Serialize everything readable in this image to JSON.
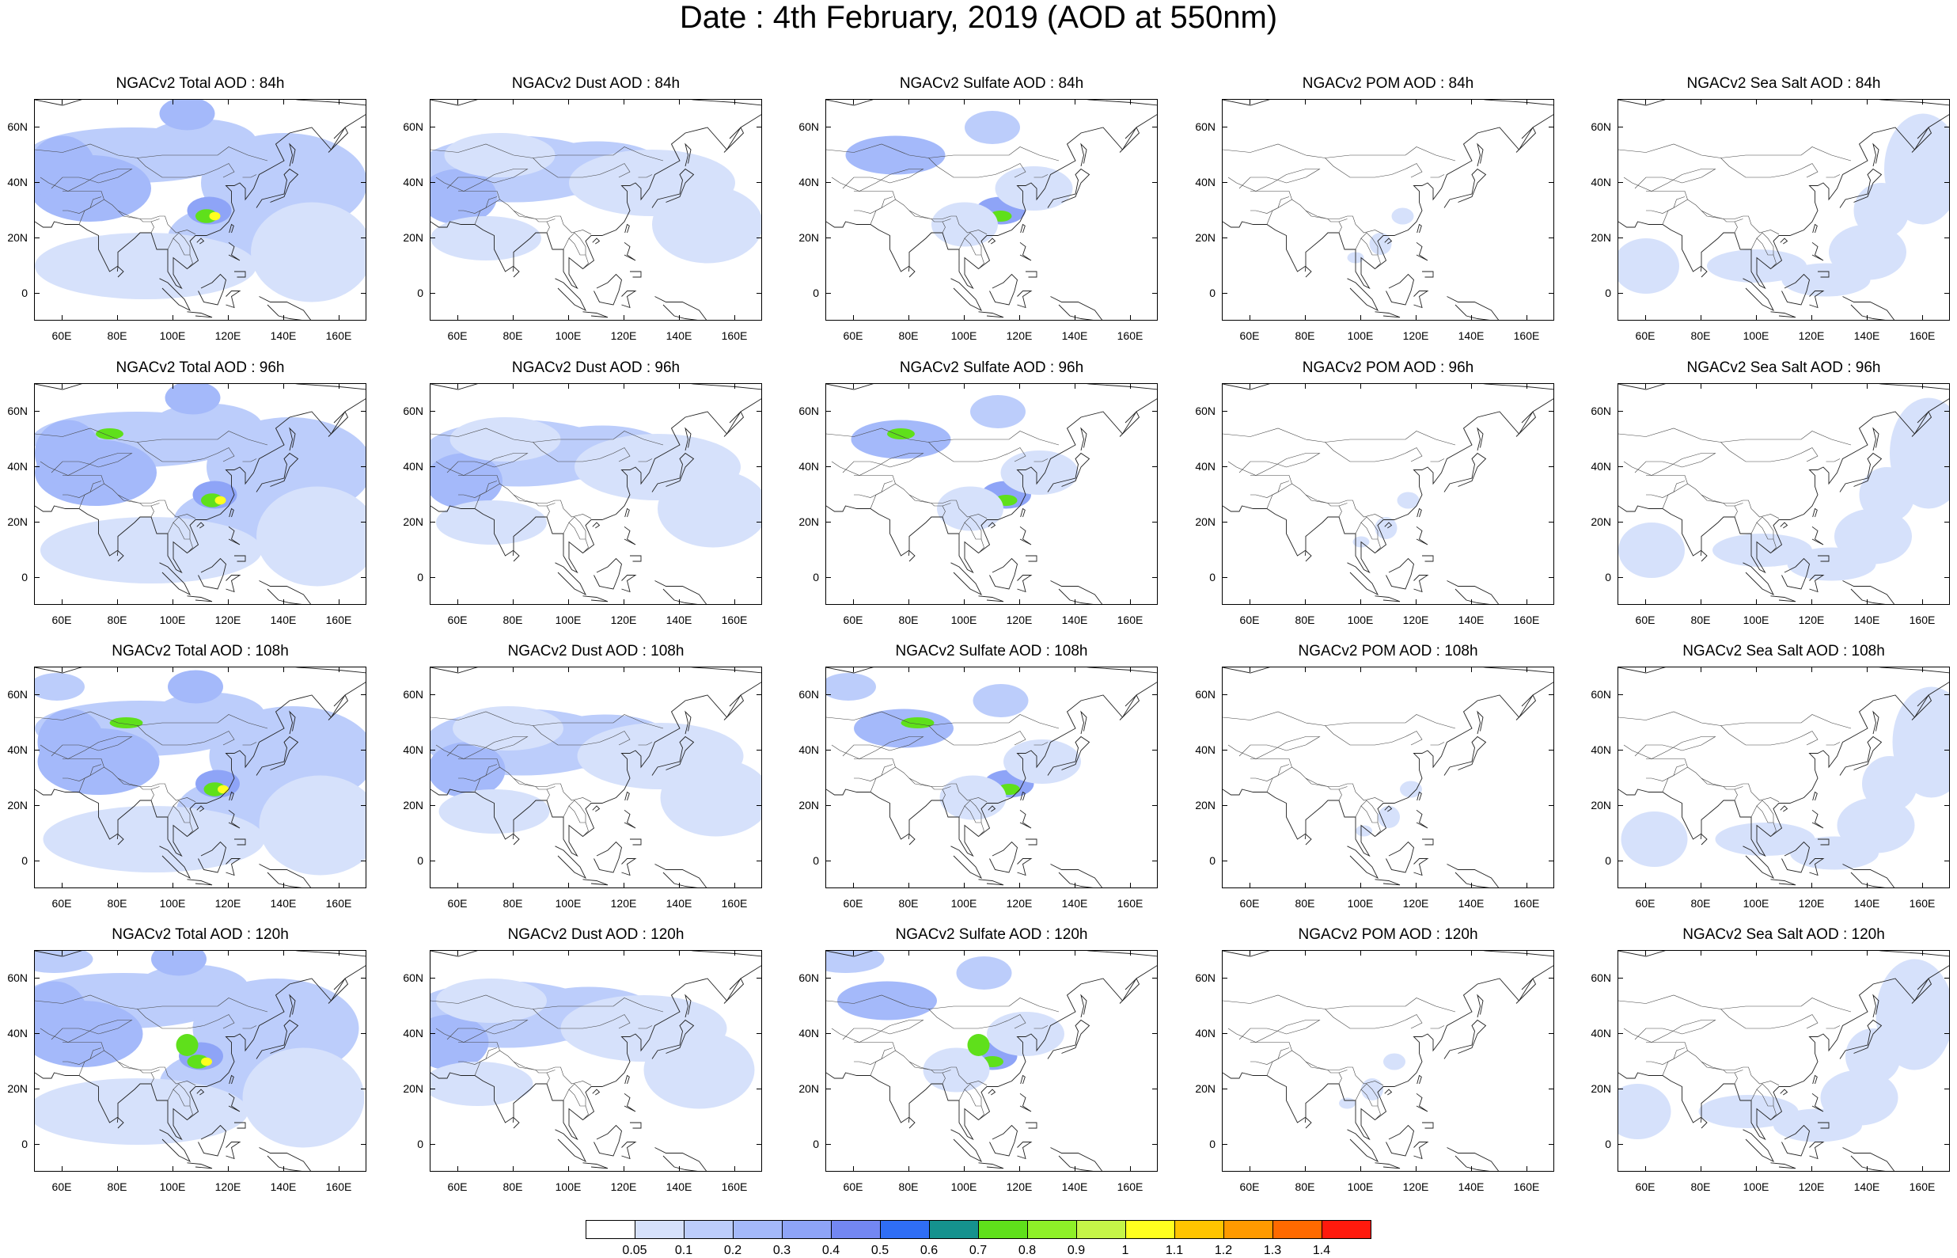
{
  "title": "Date : 4th February, 2019 (AOD at 550nm)",
  "species": [
    {
      "key": "total",
      "label": "NGACv2 Total AOD"
    },
    {
      "key": "dust",
      "label": "NGACv2 Dust AOD"
    },
    {
      "key": "sulfate",
      "label": "NGACv2 Sulfate AOD"
    },
    {
      "key": "pom",
      "label": "NGACv2 POM AOD"
    },
    {
      "key": "seasalt",
      "label": "NGACv2 Sea Salt AOD"
    }
  ],
  "panel_titles": [
    [
      "NGACv2 Total AOD : 84h",
      "NGACv2 Dust AOD : 84h",
      "NGACv2 Sulfate AOD : 84h",
      "NGACv2 POM AOD : 84h",
      "NGACv2 Sea Salt AOD : 84h"
    ],
    [
      "NGACv2 Total AOD : 96h",
      "NGACv2 Dust AOD : 96h",
      "NGACv2 Sulfate AOD : 96h",
      "NGACv2 POM AOD : 96h",
      "NGACv2 Sea Salt AOD : 96h"
    ],
    [
      "NGACv2 Total AOD : 108h",
      "NGACv2 Dust AOD : 108h",
      "NGACv2 Sulfate AOD : 108h",
      "NGACv2 POM AOD : 108h",
      "NGACv2 Sea Salt AOD : 108h"
    ],
    [
      "NGACv2 Total AOD : 120h",
      "NGACv2 Dust AOD : 120h",
      "NGACv2 Sulfate AOD : 120h",
      "NGACv2 POM AOD : 120h",
      "NGACv2 Sea Salt  AOD : 120h"
    ]
  ],
  "forecast_hours": [
    "84h",
    "96h",
    "108h",
    "120h"
  ],
  "lat_ticks": [
    "60N",
    "40N",
    "20N",
    "0"
  ],
  "lat_values": [
    60,
    40,
    20,
    0
  ],
  "lon_ticks": [
    "60E",
    "80E",
    "100E",
    "120E",
    "140E",
    "160E"
  ],
  "lon_values": [
    60,
    80,
    100,
    120,
    140,
    160
  ],
  "map_extent": {
    "lon_min": 50,
    "lon_max": 170,
    "lat_min": -10,
    "lat_max": 70
  },
  "colorbar": {
    "labels": [
      "0.05",
      "0.1",
      "0.2",
      "0.3",
      "0.4",
      "0.5",
      "0.6",
      "0.7",
      "0.8",
      "0.9",
      "1",
      "1.1",
      "1.2",
      "1.3",
      "1.4"
    ],
    "colors": [
      "#ffffff",
      "#d6e1fb",
      "#bccdfb",
      "#a4b9fa",
      "#8ea4f7",
      "#7387f2",
      "#2f6ef5",
      "#15928e",
      "#5fe01b",
      "#8ef028",
      "#c5f548",
      "#ffff1f",
      "#ffc400",
      "#ff9a00",
      "#ff6a00",
      "#ff1a0d"
    ]
  },
  "colors": {
    "light": "#d6e1fb",
    "mid": "#bccdfb",
    "strong": "#a4b9fa",
    "deep": "#8ea4f7",
    "green": "#5fe01b",
    "yellow": "#ffff1f"
  }
}
